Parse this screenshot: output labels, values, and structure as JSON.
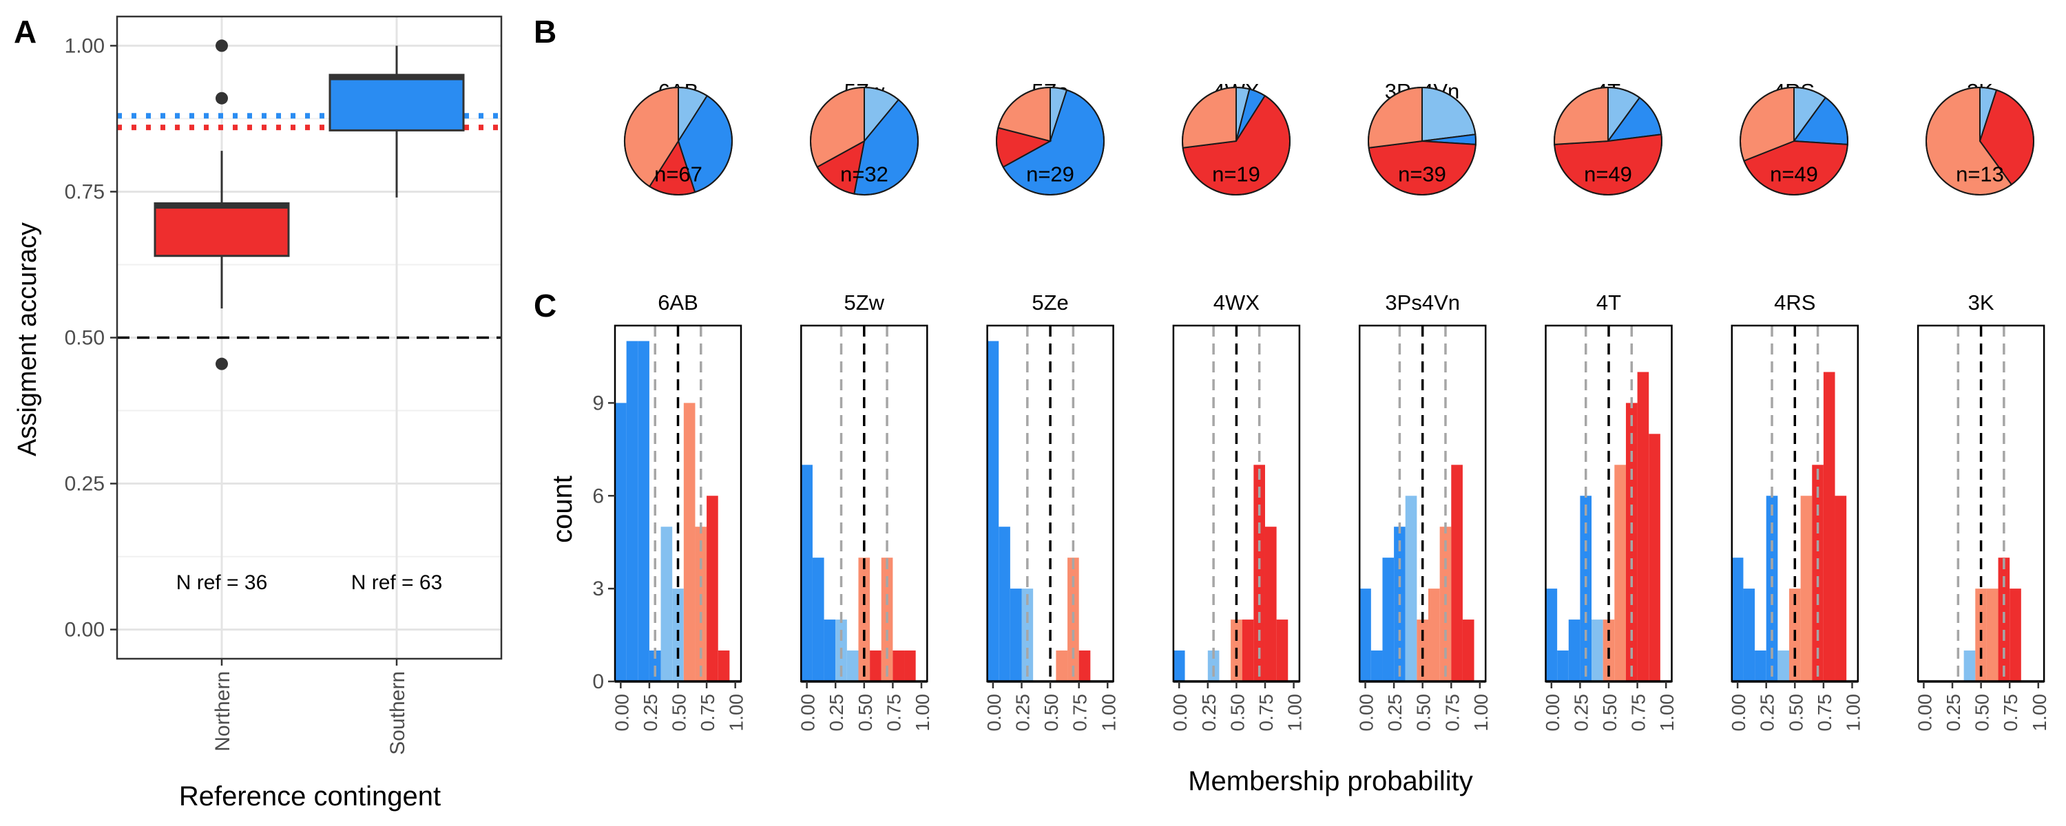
{
  "panels": {
    "a": {
      "letter": "A",
      "chart_data": {
        "type": "box",
        "categories": [
          "Northern",
          "Southern"
        ],
        "ylabel": "Assigment accuracy",
        "xlabel": "Reference contingent",
        "ylim": [
          -0.05,
          1.05
        ],
        "yticks": [
          0.0,
          0.25,
          0.5,
          0.75,
          1.0
        ],
        "ytick_labels": [
          "0.00",
          "0.25",
          "0.50",
          "0.75",
          "1.00"
        ],
        "boxes": [
          {
            "category": "Northern",
            "min": 0.55,
            "q1": 0.64,
            "median": 0.725,
            "q3": 0.73,
            "max": 0.82,
            "outliers": [
              1.0,
              0.91,
              0.455
            ],
            "color": "#ee2e2e"
          },
          {
            "category": "Southern",
            "min": 0.74,
            "q1": 0.855,
            "median": 0.945,
            "q3": 0.95,
            "max": 1.0,
            "outliers": [],
            "color": "#2a8cf2"
          }
        ],
        "reference_lines": [
          {
            "y": 0.5,
            "style": "dashed",
            "color": "#000000"
          },
          {
            "y": 0.88,
            "style": "dotted",
            "color": "#2a8cf2"
          },
          {
            "y": 0.86,
            "style": "dotted",
            "color": "#ee2e2e"
          }
        ],
        "annotations": [
          "N ref = 36",
          "N ref = 63"
        ],
        "grid": true
      }
    },
    "b": {
      "letter": "B",
      "chart_data": {
        "type": "pie",
        "slice_colors": [
          "#84c0f0",
          "#2a8cf2",
          "#ee2e2e",
          "#f98d6e"
        ],
        "pies": [
          {
            "label": "6AB",
            "n_label": "n=67",
            "values": [
              0.09,
              0.36,
              0.14,
              0.41
            ]
          },
          {
            "label": "5Zw",
            "n_label": "n=32",
            "values": [
              0.11,
              0.42,
              0.14,
              0.33
            ]
          },
          {
            "label": "5Ze",
            "n_label": "n=29",
            "values": [
              0.05,
              0.62,
              0.12,
              0.21
            ]
          },
          {
            "label": "4WX",
            "n_label": "n=19",
            "values": [
              0.04,
              0.05,
              0.64,
              0.27
            ]
          },
          {
            "label": "3Ps4Vn",
            "n_label": "n=39",
            "values": [
              0.23,
              0.03,
              0.47,
              0.27
            ]
          },
          {
            "label": "4T",
            "n_label": "n=49",
            "values": [
              0.1,
              0.13,
              0.51,
              0.26
            ]
          },
          {
            "label": "4RS",
            "n_label": "n=49",
            "values": [
              0.1,
              0.16,
              0.43,
              0.31
            ]
          },
          {
            "label": "3K",
            "n_label": "n=13",
            "values": [
              0.05,
              0.0,
              0.35,
              0.6
            ]
          }
        ]
      }
    },
    "c": {
      "letter": "C",
      "chart_data": {
        "type": "histogram",
        "ylabel": "count",
        "xlabel": "Membership probability",
        "xlim": [
          -0.05,
          1.05
        ],
        "ylim": [
          0,
          11.5
        ],
        "xticks": [
          0.0,
          0.25,
          0.5,
          0.75,
          1.0
        ],
        "xtick_labels": [
          "0.00",
          "0.25",
          "0.50",
          "0.75",
          "1.00"
        ],
        "yticks": [
          0,
          3,
          6,
          9
        ],
        "ytick_labels": [
          "0",
          "3",
          "6",
          "9"
        ],
        "bin_width": 0.1,
        "bin_starts": [
          -0.05,
          0.05,
          0.15,
          0.25,
          0.35,
          0.45,
          0.55,
          0.65,
          0.75,
          0.85,
          0.95
        ],
        "reference_lines": [
          {
            "x": 0.3,
            "style": "dashed",
            "color": "#a6a6a6"
          },
          {
            "x": 0.5,
            "style": "dashed",
            "color": "#000000"
          },
          {
            "x": 0.7,
            "style": "dashed",
            "color": "#a6a6a6"
          }
        ],
        "series": [
          {
            "name": "dark blue",
            "color": "#2a8cf2"
          },
          {
            "name": "light blue",
            "color": "#84c0f0"
          },
          {
            "name": "light red",
            "color": "#f98d6e"
          },
          {
            "name": "dark red",
            "color": "#ee2e2e"
          }
        ],
        "facets": [
          {
            "label": "6AB",
            "counts": [
              [
                9,
                0,
                0,
                0
              ],
              [
                11,
                0,
                0,
                0
              ],
              [
                11,
                0,
                0,
                0
              ],
              [
                1,
                0,
                0,
                0
              ],
              [
                0,
                5,
                0,
                0
              ],
              [
                0,
                3,
                0,
                0
              ],
              [
                0,
                0,
                9,
                0
              ],
              [
                0,
                0,
                5,
                0
              ],
              [
                0,
                0,
                0,
                6
              ],
              [
                0,
                0,
                0,
                1
              ],
              [
                0,
                0,
                0,
                0
              ]
            ]
          },
          {
            "label": "5Zw",
            "counts": [
              [
                7,
                0,
                0,
                0
              ],
              [
                4,
                0,
                0,
                0
              ],
              [
                2,
                0,
                0,
                0
              ],
              [
                0,
                2,
                0,
                0
              ],
              [
                0,
                1,
                0,
                0
              ],
              [
                0,
                0,
                4,
                0
              ],
              [
                0,
                0,
                0,
                1
              ],
              [
                0,
                0,
                4,
                0
              ],
              [
                0,
                0,
                0,
                1
              ],
              [
                0,
                0,
                0,
                1
              ],
              [
                0,
                0,
                0,
                0
              ]
            ]
          },
          {
            "label": "5Ze",
            "counts": [
              [
                11,
                0,
                0,
                0
              ],
              [
                5,
                0,
                0,
                0
              ],
              [
                3,
                0,
                0,
                0
              ],
              [
                0,
                3,
                0,
                0
              ],
              [
                0,
                0,
                0,
                0
              ],
              [
                0,
                0,
                0,
                0
              ],
              [
                0,
                0,
                1,
                0
              ],
              [
                0,
                0,
                4,
                0
              ],
              [
                0,
                0,
                0,
                1
              ],
              [
                0,
                0,
                0,
                0
              ],
              [
                0,
                0,
                0,
                0
              ]
            ]
          },
          {
            "label": "4WX",
            "counts": [
              [
                1,
                0,
                0,
                0
              ],
              [
                0,
                0,
                0,
                0
              ],
              [
                0,
                0,
                0,
                0
              ],
              [
                0,
                1,
                0,
                0
              ],
              [
                0,
                0,
                0,
                0
              ],
              [
                0,
                0,
                2,
                0
              ],
              [
                0,
                0,
                0,
                2
              ],
              [
                0,
                0,
                0,
                7
              ],
              [
                0,
                0,
                0,
                5
              ],
              [
                0,
                0,
                0,
                2
              ],
              [
                0,
                0,
                0,
                0
              ]
            ]
          },
          {
            "label": "3Ps4Vn",
            "counts": [
              [
                3,
                0,
                0,
                0
              ],
              [
                1,
                0,
                0,
                0
              ],
              [
                4,
                0,
                0,
                0
              ],
              [
                5,
                0,
                0,
                0
              ],
              [
                0,
                6,
                0,
                0
              ],
              [
                0,
                0,
                2,
                0
              ],
              [
                0,
                0,
                3,
                0
              ],
              [
                0,
                0,
                5,
                0
              ],
              [
                0,
                0,
                0,
                7
              ],
              [
                0,
                0,
                0,
                2
              ],
              [
                0,
                0,
                0,
                0
              ]
            ]
          },
          {
            "label": "4T",
            "counts": [
              [
                3,
                0,
                0,
                0
              ],
              [
                1,
                0,
                0,
                0
              ],
              [
                2,
                0,
                0,
                0
              ],
              [
                6,
                0,
                0,
                0
              ],
              [
                0,
                2,
                0,
                0
              ],
              [
                0,
                0,
                2,
                0
              ],
              [
                0,
                0,
                7,
                0
              ],
              [
                0,
                0,
                0,
                9
              ],
              [
                0,
                0,
                0,
                10
              ],
              [
                0,
                0,
                0,
                8
              ],
              [
                0,
                0,
                0,
                0
              ]
            ]
          },
          {
            "label": "4RS",
            "counts": [
              [
                4,
                0,
                0,
                0
              ],
              [
                3,
                0,
                0,
                0
              ],
              [
                1,
                0,
                0,
                0
              ],
              [
                6,
                0,
                0,
                0
              ],
              [
                0,
                1,
                0,
                0
              ],
              [
                0,
                0,
                3,
                0
              ],
              [
                0,
                0,
                6,
                0
              ],
              [
                0,
                0,
                0,
                7
              ],
              [
                0,
                0,
                0,
                10
              ],
              [
                0,
                0,
                0,
                6
              ],
              [
                0,
                0,
                0,
                0
              ]
            ]
          },
          {
            "label": "3K",
            "counts": [
              [
                0,
                0,
                0,
                0
              ],
              [
                0,
                0,
                0,
                0
              ],
              [
                0,
                0,
                0,
                0
              ],
              [
                0,
                0,
                0,
                0
              ],
              [
                0,
                1,
                0,
                0
              ],
              [
                0,
                0,
                3,
                0
              ],
              [
                0,
                0,
                3,
                0
              ],
              [
                0,
                0,
                0,
                4
              ],
              [
                0,
                0,
                0,
                3
              ],
              [
                0,
                0,
                0,
                0
              ],
              [
                0,
                0,
                0,
                0
              ]
            ]
          }
        ]
      }
    }
  }
}
